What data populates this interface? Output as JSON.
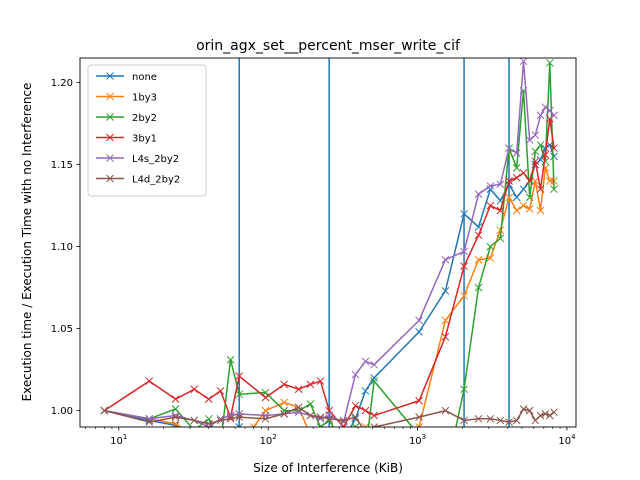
{
  "chart_data": {
    "type": "line",
    "title": "orin_agx_set__percent_mser_write_cif",
    "xlabel": "Size of Interference (KiB)",
    "ylabel": "Execution time / Execution Time with no Interference",
    "xscale": "log",
    "xlim": [
      5.5,
      11500
    ],
    "ylim": [
      0.99,
      1.215
    ],
    "x_ticks": [
      {
        "value": 10,
        "base": "10",
        "exp": "1"
      },
      {
        "value": 100,
        "base": "10",
        "exp": "2"
      },
      {
        "value": 1000,
        "base": "10",
        "exp": "3"
      },
      {
        "value": 10000,
        "base": "10",
        "exp": "4"
      }
    ],
    "y_ticks": [
      {
        "value": 1.0,
        "label": "1.00"
      },
      {
        "value": 1.05,
        "label": "1.05"
      },
      {
        "value": 1.1,
        "label": "1.10"
      },
      {
        "value": 1.15,
        "label": "1.15"
      },
      {
        "value": 1.2,
        "label": "1.20"
      }
    ],
    "vlines": [
      64,
      256,
      2048,
      4096
    ],
    "vline_color": "#1f77b4",
    "grid": false,
    "legend_position": "top-left",
    "series": [
      {
        "name": "none",
        "color": "#1f77b4",
        "points": [
          [
            8,
            1.0
          ],
          [
            16,
            0.994
          ],
          [
            24,
            0.991
          ],
          [
            32,
            0.986
          ],
          [
            40,
            0.983
          ],
          [
            48,
            0.98
          ],
          [
            56,
            0.978
          ],
          [
            64,
            0.99
          ],
          [
            80,
            0.988
          ],
          [
            96,
            0.985
          ],
          [
            112,
            0.982
          ],
          [
            128,
            0.98
          ],
          [
            160,
            0.978
          ],
          [
            192,
            0.976
          ],
          [
            224,
            0.977
          ],
          [
            256,
            0.978
          ],
          [
            320,
            0.982
          ],
          [
            384,
            0.995
          ],
          [
            448,
            1.012
          ],
          [
            512,
            1.02
          ],
          [
            1024,
            1.048
          ],
          [
            1536,
            1.073
          ],
          [
            2048,
            1.12
          ],
          [
            2560,
            1.112
          ],
          [
            3072,
            1.135
          ],
          [
            3584,
            1.128
          ],
          [
            4096,
            1.138
          ],
          [
            4608,
            1.13
          ],
          [
            5120,
            1.135
          ],
          [
            5632,
            1.14
          ],
          [
            6144,
            1.15
          ],
          [
            6656,
            1.153
          ],
          [
            7168,
            1.16
          ],
          [
            7680,
            1.162
          ],
          [
            8192,
            1.155
          ]
        ]
      },
      {
        "name": "1by3",
        "color": "#ff7f0e",
        "points": [
          [
            8,
            1.0
          ],
          [
            16,
            0.995
          ],
          [
            24,
            0.992
          ],
          [
            32,
            0.985
          ],
          [
            40,
            0.98
          ],
          [
            48,
            0.975
          ],
          [
            56,
            0.98
          ],
          [
            64,
            0.982
          ],
          [
            80,
            0.99
          ],
          [
            96,
            1.0
          ],
          [
            128,
            1.005
          ],
          [
            160,
            1.002
          ],
          [
            192,
            0.985
          ],
          [
            224,
            0.97
          ],
          [
            256,
            0.975
          ],
          [
            320,
            0.98
          ],
          [
            384,
            0.985
          ],
          [
            448,
            0.99
          ],
          [
            512,
            0.985
          ],
          [
            1024,
            0.99
          ],
          [
            1536,
            1.055
          ],
          [
            2048,
            1.07
          ],
          [
            2560,
            1.092
          ],
          [
            3072,
            1.093
          ],
          [
            3584,
            1.11
          ],
          [
            4096,
            1.13
          ],
          [
            4608,
            1.122
          ],
          [
            5120,
            1.125
          ],
          [
            5632,
            1.123
          ],
          [
            6144,
            1.14
          ],
          [
            6656,
            1.122
          ],
          [
            7168,
            1.148
          ],
          [
            7680,
            1.14
          ],
          [
            8192,
            1.14
          ]
        ]
      },
      {
        "name": "2by2",
        "color": "#2ca02c",
        "points": [
          [
            8,
            1.0
          ],
          [
            16,
            0.995
          ],
          [
            24,
            1.001
          ],
          [
            32,
            0.988
          ],
          [
            40,
            0.995
          ],
          [
            48,
            0.98
          ],
          [
            56,
            1.031
          ],
          [
            64,
            1.01
          ],
          [
            96,
            1.011
          ],
          [
            128,
            1.0
          ],
          [
            160,
            1.0
          ],
          [
            192,
            1.004
          ],
          [
            224,
            0.99
          ],
          [
            256,
            0.994
          ],
          [
            320,
            0.98
          ],
          [
            384,
            0.99
          ],
          [
            448,
            0.975
          ],
          [
            512,
            1.018
          ],
          [
            1024,
            0.985
          ],
          [
            1536,
            0.96
          ],
          [
            2048,
            1.013
          ],
          [
            2560,
            1.075
          ],
          [
            3072,
            1.1
          ],
          [
            3584,
            1.105
          ],
          [
            4096,
            1.16
          ],
          [
            4608,
            1.148
          ],
          [
            5120,
            1.195
          ],
          [
            5632,
            1.13
          ],
          [
            6144,
            1.158
          ],
          [
            6656,
            1.162
          ],
          [
            7168,
            1.152
          ],
          [
            7680,
            1.212
          ],
          [
            8192,
            1.135
          ]
        ]
      },
      {
        "name": "3by1",
        "color": "#d62728",
        "points": [
          [
            8,
            1.0
          ],
          [
            16,
            1.018
          ],
          [
            24,
            1.007
          ],
          [
            32,
            1.013
          ],
          [
            40,
            1.007
          ],
          [
            48,
            1.012
          ],
          [
            56,
            0.996
          ],
          [
            64,
            1.021
          ],
          [
            96,
            1.008
          ],
          [
            128,
            1.016
          ],
          [
            160,
            1.013
          ],
          [
            192,
            1.016
          ],
          [
            224,
            1.018
          ],
          [
            256,
            1.0
          ],
          [
            320,
            0.99
          ],
          [
            384,
            1.003
          ],
          [
            448,
            1.0
          ],
          [
            512,
            0.997
          ],
          [
            1024,
            1.006
          ],
          [
            1536,
            1.045
          ],
          [
            2048,
            1.088
          ],
          [
            2560,
            1.107
          ],
          [
            3072,
            1.125
          ],
          [
            3584,
            1.122
          ],
          [
            4096,
            1.14
          ],
          [
            4608,
            1.142
          ],
          [
            5120,
            1.145
          ],
          [
            5632,
            1.14
          ],
          [
            6144,
            1.152
          ],
          [
            6656,
            1.135
          ],
          [
            7168,
            1.156
          ],
          [
            7680,
            1.178
          ],
          [
            8192,
            1.16
          ]
        ]
      },
      {
        "name": "L4s_2by2",
        "color": "#9467bd",
        "points": [
          [
            8,
            1.0
          ],
          [
            16,
            0.995
          ],
          [
            24,
            0.997
          ],
          [
            32,
            0.994
          ],
          [
            40,
            0.99
          ],
          [
            48,
            0.995
          ],
          [
            56,
            0.997
          ],
          [
            64,
            0.998
          ],
          [
            96,
            0.997
          ],
          [
            128,
            0.998
          ],
          [
            160,
            0.999
          ],
          [
            192,
            0.997
          ],
          [
            224,
            0.995
          ],
          [
            256,
            0.997
          ],
          [
            320,
            0.993
          ],
          [
            384,
            1.022
          ],
          [
            448,
            1.03
          ],
          [
            512,
            1.028
          ],
          [
            1024,
            1.055
          ],
          [
            1536,
            1.092
          ],
          [
            2048,
            1.097
          ],
          [
            2560,
            1.132
          ],
          [
            3072,
            1.137
          ],
          [
            3584,
            1.138
          ],
          [
            4096,
            1.16
          ],
          [
            4608,
            1.157
          ],
          [
            5120,
            1.213
          ],
          [
            5632,
            1.165
          ],
          [
            6144,
            1.168
          ],
          [
            6656,
            1.18
          ],
          [
            7168,
            1.185
          ],
          [
            7680,
            1.183
          ],
          [
            8192,
            1.18
          ]
        ]
      },
      {
        "name": "L4d_2by2",
        "color": "#8c564b",
        "points": [
          [
            8,
            1.0
          ],
          [
            16,
            0.993
          ],
          [
            24,
            0.996
          ],
          [
            32,
            0.994
          ],
          [
            40,
            0.992
          ],
          [
            48,
            0.994
          ],
          [
            56,
            0.995
          ],
          [
            64,
            0.996
          ],
          [
            96,
            0.995
          ],
          [
            128,
            0.998
          ],
          [
            160,
            1.002
          ],
          [
            192,
            0.997
          ],
          [
            224,
            0.996
          ],
          [
            256,
            0.995
          ],
          [
            320,
            0.994
          ],
          [
            384,
            0.996
          ],
          [
            448,
            0.987
          ],
          [
            512,
            0.99
          ],
          [
            1024,
            0.996
          ],
          [
            1536,
            1.0
          ],
          [
            2048,
            0.994
          ],
          [
            2560,
            0.995
          ],
          [
            3072,
            0.995
          ],
          [
            3584,
            0.994
          ],
          [
            4096,
            0.993
          ],
          [
            4608,
            0.994
          ],
          [
            5120,
            1.001
          ],
          [
            5632,
            1.0
          ],
          [
            6144,
            0.994
          ],
          [
            6656,
            0.997
          ],
          [
            7168,
            0.998
          ],
          [
            7680,
            0.997
          ],
          [
            8192,
            0.999
          ]
        ]
      }
    ]
  }
}
